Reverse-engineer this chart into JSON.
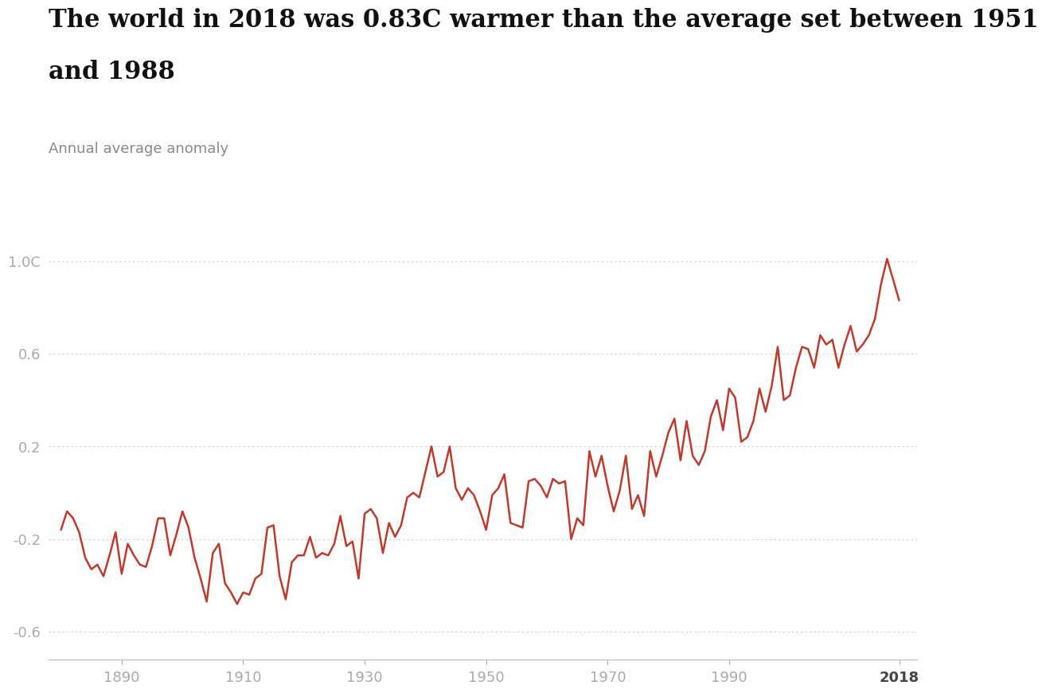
{
  "title_line1": "The world in 2018 was 0.83C warmer than the average set between 1951",
  "title_line2": "and 1988",
  "ylabel": "Annual average anomaly",
  "line_color": "#c0392b",
  "background_color": "#ffffff",
  "title_fontsize": 22,
  "ylabel_fontsize": 13,
  "tick_label_color": "#aaaaaa",
  "tick_label_fontsize": 13,
  "yticks": [
    1.0,
    0.6,
    0.2,
    -0.2,
    -0.6
  ],
  "ytick_labels": [
    "1.0C",
    "0.6",
    "0.2",
    "-0.2",
    "-0.6"
  ],
  "xticks": [
    1890,
    1910,
    1930,
    1950,
    1970,
    1990,
    2018
  ],
  "ylim": [
    -0.72,
    1.08
  ],
  "xlim": [
    1878,
    2021
  ],
  "years": [
    1880,
    1881,
    1882,
    1883,
    1884,
    1885,
    1886,
    1887,
    1888,
    1889,
    1890,
    1891,
    1892,
    1893,
    1894,
    1895,
    1896,
    1897,
    1898,
    1899,
    1900,
    1901,
    1902,
    1903,
    1904,
    1905,
    1906,
    1907,
    1908,
    1909,
    1910,
    1911,
    1912,
    1913,
    1914,
    1915,
    1916,
    1917,
    1918,
    1919,
    1920,
    1921,
    1922,
    1923,
    1924,
    1925,
    1926,
    1927,
    1928,
    1929,
    1930,
    1931,
    1932,
    1933,
    1934,
    1935,
    1936,
    1937,
    1938,
    1939,
    1940,
    1941,
    1942,
    1943,
    1944,
    1945,
    1946,
    1947,
    1948,
    1949,
    1950,
    1951,
    1952,
    1953,
    1954,
    1955,
    1956,
    1957,
    1958,
    1959,
    1960,
    1961,
    1962,
    1963,
    1964,
    1965,
    1966,
    1967,
    1968,
    1969,
    1970,
    1971,
    1972,
    1973,
    1974,
    1975,
    1976,
    1977,
    1978,
    1979,
    1980,
    1981,
    1982,
    1983,
    1984,
    1985,
    1986,
    1987,
    1988,
    1989,
    1990,
    1991,
    1992,
    1993,
    1994,
    1995,
    1996,
    1997,
    1998,
    1999,
    2000,
    2001,
    2002,
    2003,
    2004,
    2005,
    2006,
    2007,
    2008,
    2009,
    2010,
    2011,
    2012,
    2013,
    2014,
    2015,
    2016,
    2017,
    2018
  ],
  "anomalies": [
    -0.16,
    -0.08,
    -0.11,
    -0.17,
    -0.28,
    -0.33,
    -0.31,
    -0.36,
    -0.27,
    -0.17,
    -0.35,
    -0.22,
    -0.27,
    -0.31,
    -0.32,
    -0.23,
    -0.11,
    -0.11,
    -0.27,
    -0.18,
    -0.08,
    -0.15,
    -0.28,
    -0.37,
    -0.47,
    -0.26,
    -0.22,
    -0.39,
    -0.43,
    -0.48,
    -0.43,
    -0.44,
    -0.37,
    -0.35,
    -0.15,
    -0.14,
    -0.36,
    -0.46,
    -0.3,
    -0.27,
    -0.27,
    -0.19,
    -0.28,
    -0.26,
    -0.27,
    -0.22,
    -0.1,
    -0.23,
    -0.21,
    -0.37,
    -0.09,
    -0.07,
    -0.11,
    -0.26,
    -0.13,
    -0.19,
    -0.14,
    -0.02,
    -0.0,
    -0.02,
    0.09,
    0.2,
    0.07,
    0.09,
    0.2,
    0.02,
    -0.03,
    0.02,
    -0.01,
    -0.08,
    -0.16,
    -0.01,
    0.02,
    0.08,
    -0.13,
    -0.14,
    -0.15,
    0.05,
    0.06,
    0.03,
    -0.02,
    0.06,
    0.04,
    0.05,
    -0.2,
    -0.11,
    -0.14,
    0.18,
    0.07,
    0.16,
    0.03,
    -0.08,
    0.01,
    0.16,
    -0.07,
    -0.01,
    -0.1,
    0.18,
    0.07,
    0.16,
    0.26,
    0.32,
    0.14,
    0.31,
    0.16,
    0.12,
    0.18,
    0.33,
    0.4,
    0.27,
    0.45,
    0.41,
    0.22,
    0.24,
    0.31,
    0.45,
    0.35,
    0.46,
    0.63,
    0.4,
    0.42,
    0.54,
    0.63,
    0.62,
    0.54,
    0.68,
    0.64,
    0.66,
    0.54,
    0.64,
    0.72,
    0.61,
    0.64,
    0.68,
    0.75,
    0.9,
    1.01,
    0.92,
    0.83
  ]
}
